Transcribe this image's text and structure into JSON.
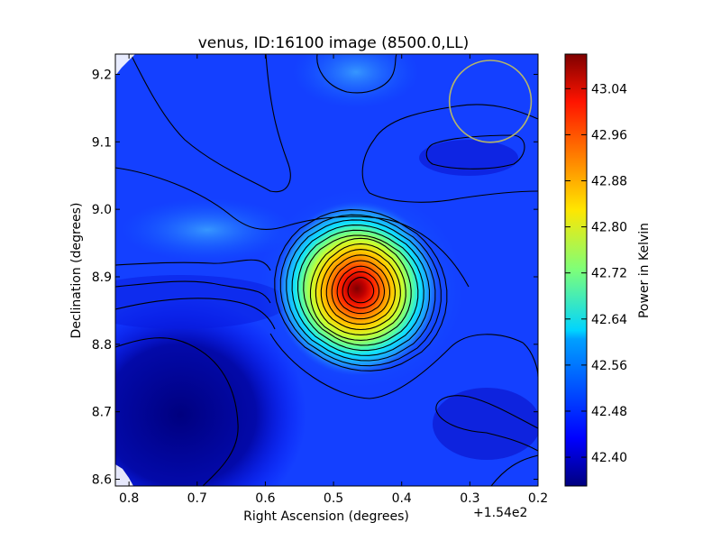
{
  "chart_data": {
    "type": "heatmap",
    "title": "venus, ID:16100 image (8500.0,LL)",
    "xlabel": "Right Ascension (degrees)",
    "ylabel": "Declination (degrees)",
    "x_offset_label": "+1.54e2",
    "xlim": [
      0.82,
      0.2
    ],
    "ylim": [
      8.59,
      9.23
    ],
    "xticks": [
      0.8,
      0.7,
      0.6,
      0.5,
      0.4,
      0.3,
      0.2
    ],
    "xtick_labels": [
      "0.8",
      "0.7",
      "0.6",
      "0.5",
      "0.4",
      "0.3",
      "0.2"
    ],
    "yticks": [
      8.6,
      8.7,
      8.8,
      8.9,
      9.0,
      9.1,
      9.2
    ],
    "ytick_labels": [
      "8.6",
      "8.7",
      "8.8",
      "8.9",
      "9.0",
      "9.1",
      "9.2"
    ],
    "colorbar": {
      "label": "Power in Kelvin",
      "range": [
        42.35,
        43.1
      ],
      "ticks": [
        42.4,
        42.48,
        42.56,
        42.64,
        42.72,
        42.8,
        42.88,
        42.96,
        43.04
      ],
      "tick_labels": [
        "42.40",
        "42.48",
        "42.56",
        "42.64",
        "42.72",
        "42.80",
        "42.88",
        "42.96",
        "43.04"
      ],
      "colormap": "jet"
    },
    "peak": {
      "ra": 0.46,
      "dec": 8.88,
      "value": 43.08
    },
    "beam_circle": {
      "ra": 0.27,
      "dec": 9.16,
      "radius_deg": 0.06,
      "color": "#b5b56a"
    },
    "contour_levels": 14
  }
}
